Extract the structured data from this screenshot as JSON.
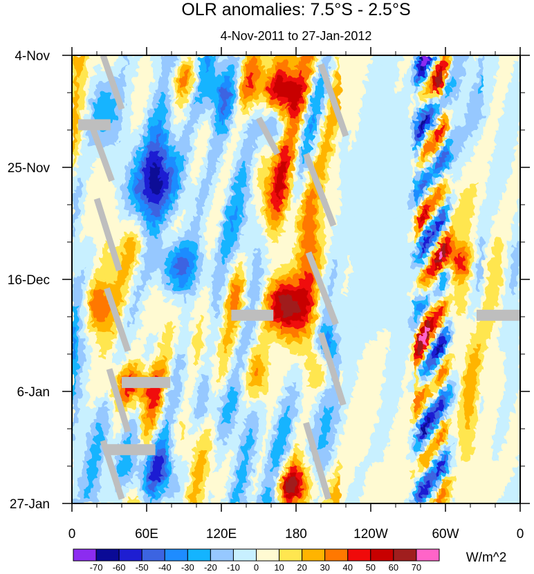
{
  "chart_data": {
    "type": "heatmap",
    "title": "OLR anomalies: 7.5°S - 2.5°S",
    "subtitle": "4-Nov-2011 to 27-Jan-2012",
    "xlabel": "",
    "ylabel": "",
    "x_ticks": [
      "0",
      "60E",
      "120E",
      "180",
      "120W",
      "60W",
      "0"
    ],
    "y_ticks": [
      "4-Nov",
      "25-Nov",
      "16-Dec",
      "6-Jan",
      "27-Jan"
    ],
    "colorbar": {
      "units": "W/m^2",
      "levels": [
        "-70",
        "-60",
        "-50",
        "-40",
        "-30",
        "-20",
        "-10",
        "0",
        "10",
        "20",
        "30",
        "40",
        "50",
        "60",
        "70"
      ],
      "colors": [
        "#8c2cf0",
        "#0a0a96",
        "#1e1ed2",
        "#3c64e1",
        "#1e8cff",
        "#14b4ff",
        "#96c8ff",
        "#c8f0ff",
        "#fffad2",
        "#ffe650",
        "#ffb400",
        "#ff7800",
        "#f00a0a",
        "#c80000",
        "#a01e1e",
        "#ff64c8"
      ]
    },
    "missing_color": "#bebebe",
    "features": [
      {
        "name": "eastern-pacific-neutral-band",
        "longitude_range": "150W-80W",
        "anomaly": "near 0 to +10"
      },
      {
        "name": "dateline-convection-suppression",
        "longitude": "180",
        "peak_anomaly": "+60 to +70",
        "period": "mid-Dec to late Dec"
      },
      {
        "name": "indian-ocean-enhanced-convection",
        "longitude_range": "60E-100E",
        "peak_anomaly": "-70",
        "period": "late Nov"
      },
      {
        "name": "south-america-variability-band",
        "longitude_range": "80W-55W",
        "anomaly": "alternating -50 to +50"
      },
      {
        "name": "missing-data-swaths",
        "note": "diagonal grey swaths of missing data"
      }
    ]
  }
}
